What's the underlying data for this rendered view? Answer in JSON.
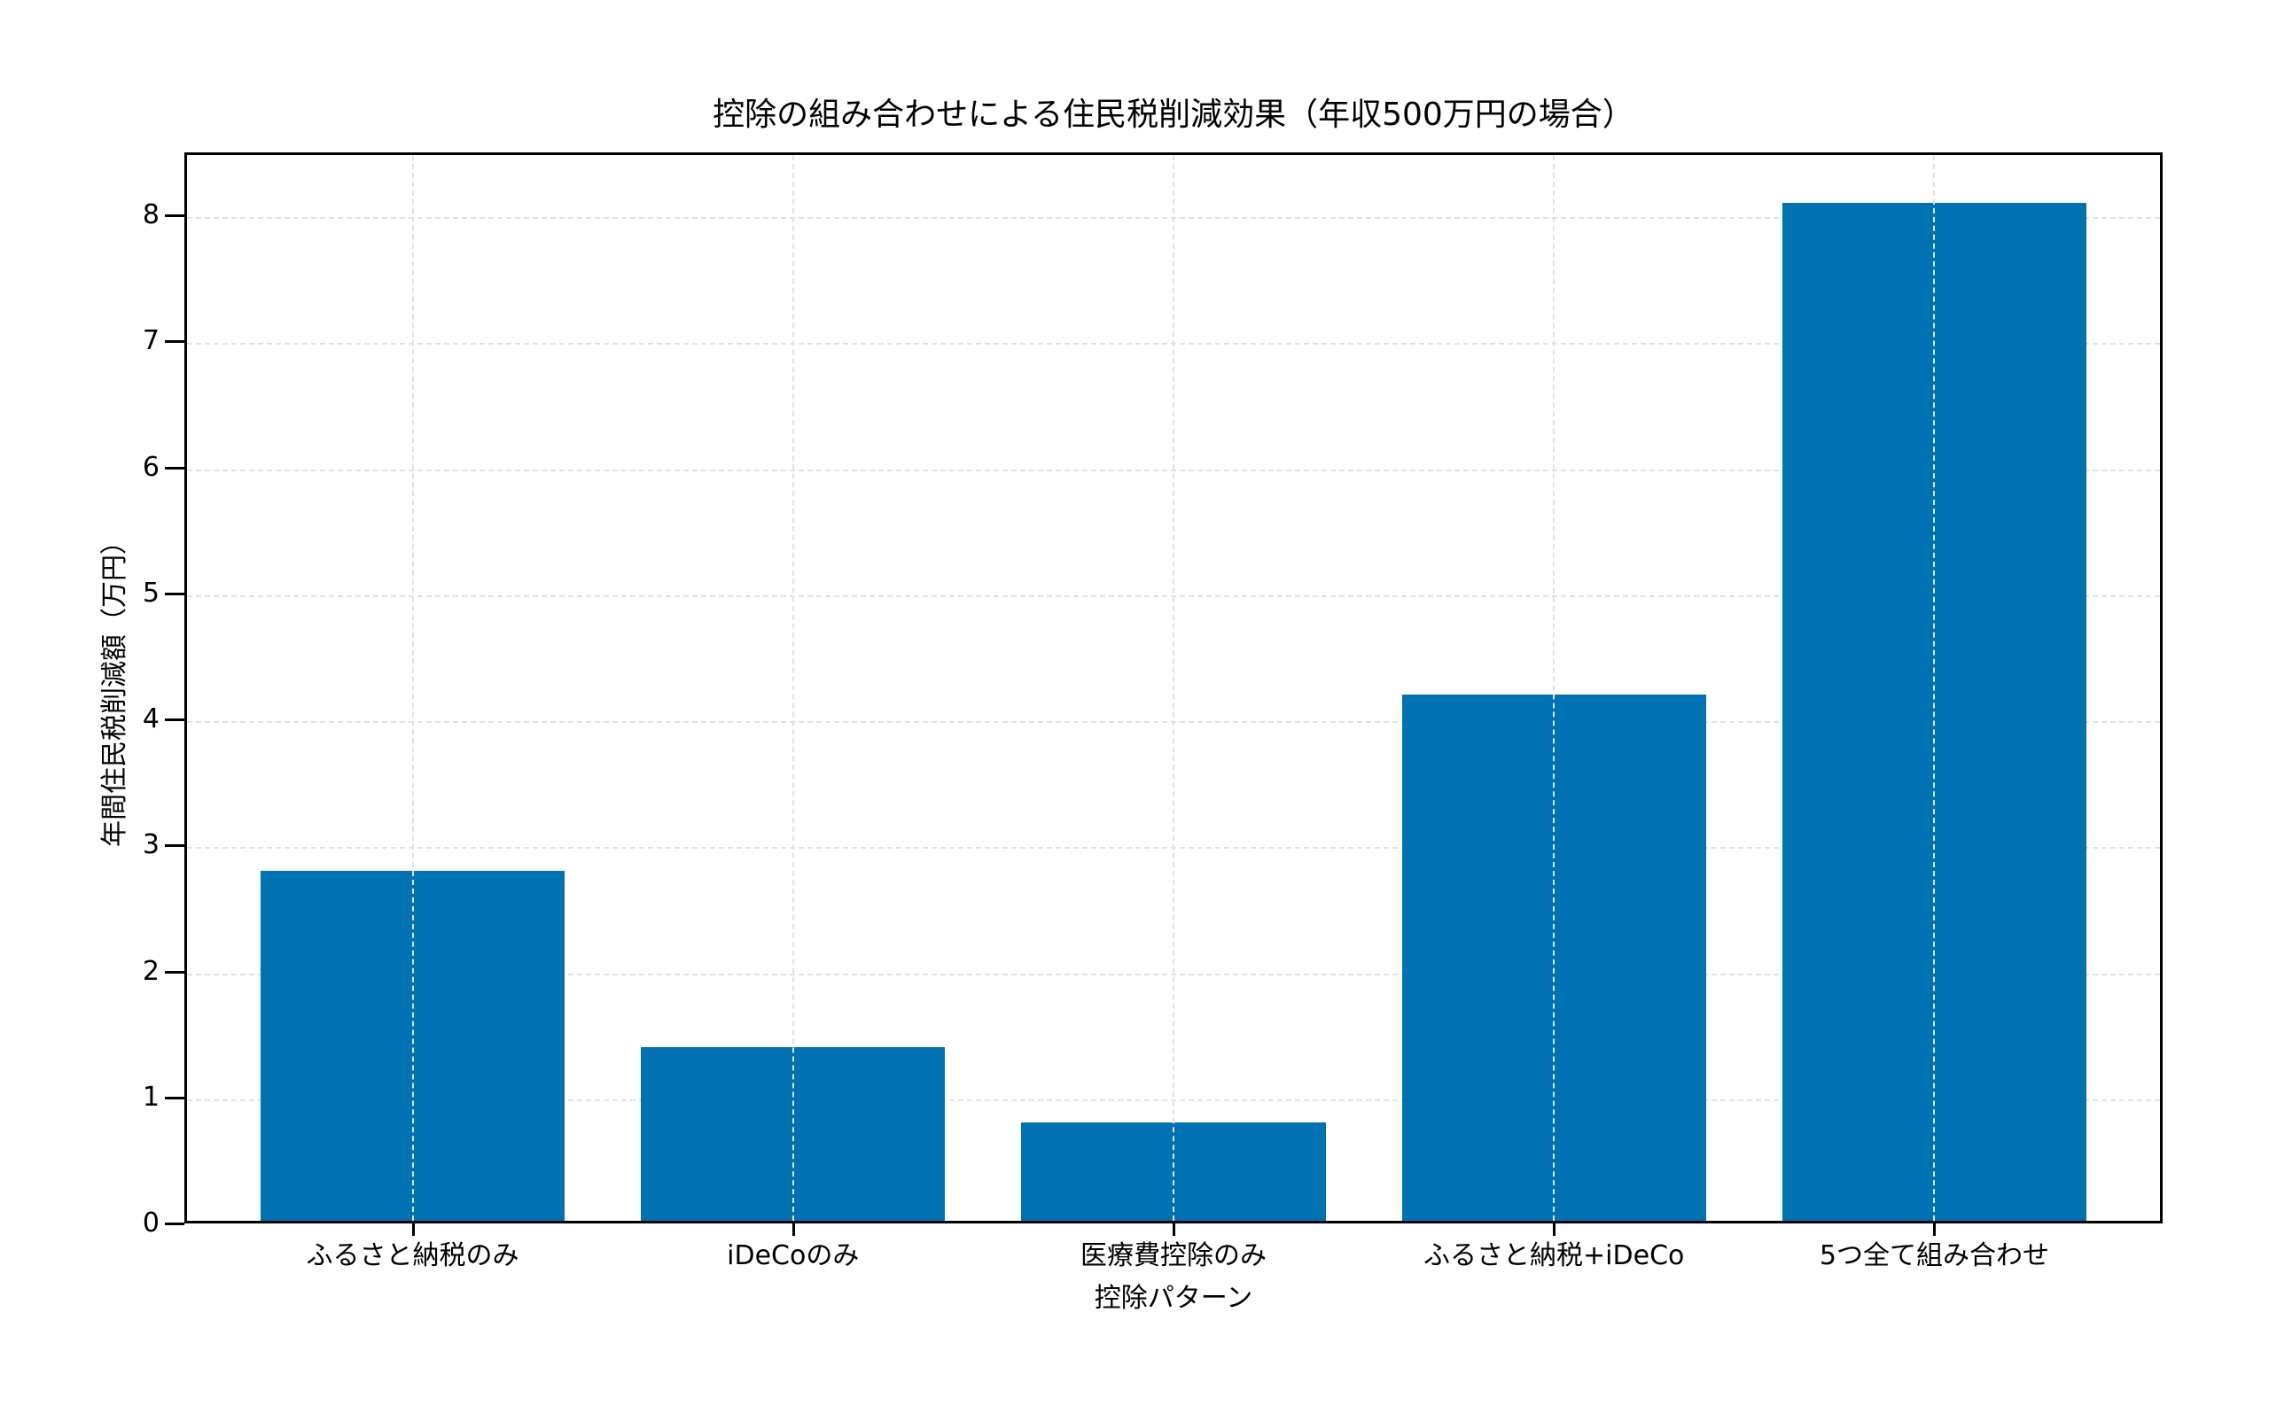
{
  "chart_data": {
    "type": "bar",
    "title": "控除の組み合わせによる住民税削減効果（年収500万円の場合）",
    "xlabel": "控除パターン",
    "ylabel": "年間住民税削減額（万円）",
    "categories": [
      "ふるさと納税のみ",
      "iDeCoのみ",
      "医療費控除のみ",
      "ふるさと納税+iDeCo",
      "5つ全て組み合わせ"
    ],
    "values": [
      2.8,
      1.4,
      0.8,
      4.2,
      8.1
    ],
    "ylim": [
      0,
      8.5
    ],
    "yticks": [
      0,
      1,
      2,
      3,
      4,
      5,
      6,
      7,
      8
    ],
    "grid": true,
    "grid_style": "dashed",
    "legend": null,
    "bar_color": "#0072B2"
  },
  "title": "控除の組み合わせによる住民税削減効果（年収500万円の場合）",
  "xlabel": "控除パターン",
  "ylabel": "年間住民税削減額（万円）",
  "yticks": [
    "0",
    "1",
    "2",
    "3",
    "4",
    "5",
    "6",
    "7",
    "8"
  ],
  "categories": [
    "ふるさと納税のみ",
    "iDeCoのみ",
    "医療費控除のみ",
    "ふるさと納税+iDeCo",
    "5つ全て組み合わせ"
  ]
}
